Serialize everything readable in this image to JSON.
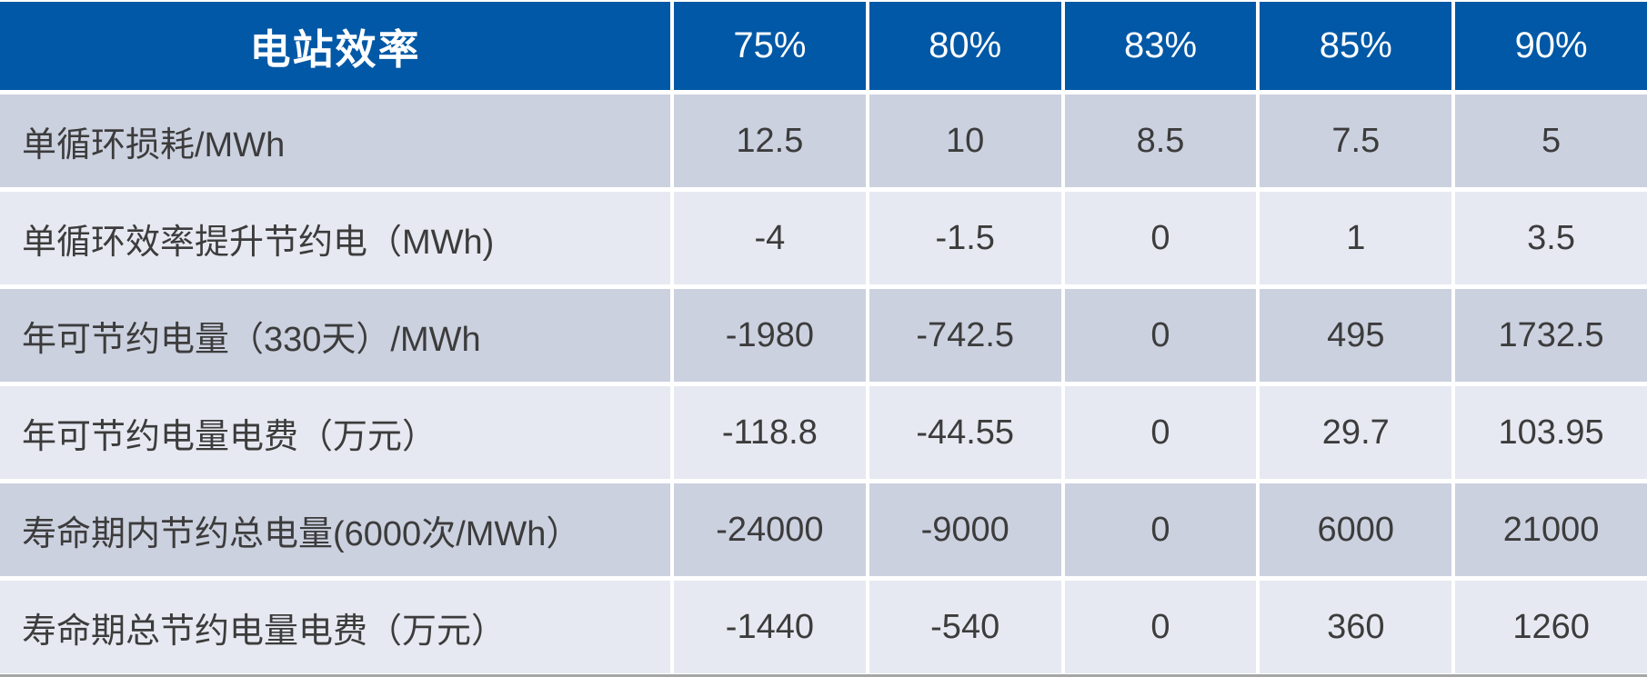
{
  "chart_data": {
    "type": "table",
    "title": "电站效率",
    "columns": [
      "电站效率",
      "75%",
      "80%",
      "83%",
      "85%",
      "90%"
    ],
    "rows": [
      {
        "label": "单循环损耗/MWh",
        "values": [
          12.5,
          10,
          8.5,
          7.5,
          5
        ]
      },
      {
        "label": "单循环效率提升节约电（MWh)",
        "values": [
          -4,
          -1.5,
          0,
          1,
          3.5
        ]
      },
      {
        "label": "年可节约电量（330天）/MWh",
        "values": [
          -1980,
          -742.5,
          0,
          495,
          1732.5
        ]
      },
      {
        "label": "年可节约电量电费（万元）",
        "values": [
          -118.8,
          -44.55,
          0,
          29.7,
          103.95
        ]
      },
      {
        "label": "寿命期内节约总电量(6000次/MWh）",
        "values": [
          -24000,
          -9000,
          0,
          6000,
          21000
        ]
      },
      {
        "label": "寿命期总节约电量电费（万元）",
        "values": [
          -1440,
          -540,
          0,
          360,
          1260
        ]
      }
    ]
  },
  "table": {
    "header": {
      "label": "电站效率",
      "columns": [
        "75%",
        "80%",
        "83%",
        "85%",
        "90%"
      ]
    },
    "rows": [
      {
        "label": "单循环损耗/MWh",
        "values": [
          "12.5",
          "10",
          "8.5",
          "7.5",
          "5"
        ]
      },
      {
        "label": "单循环效率提升节约电（MWh)",
        "values": [
          "-4",
          "-1.5",
          "0",
          "1",
          "3.5"
        ]
      },
      {
        "label": "年可节约电量（330天）/MWh",
        "values": [
          "-1980",
          "-742.5",
          "0",
          "495",
          "1732.5"
        ]
      },
      {
        "label": "年可节约电量电费（万元）",
        "values": [
          "-118.8",
          "-44.55",
          "0",
          "29.7",
          "103.95"
        ]
      },
      {
        "label": "寿命期内节约总电量(6000次/MWh）",
        "values": [
          "-24000",
          "-9000",
          "0",
          "6000",
          "21000"
        ]
      },
      {
        "label": "寿命期总节约电量电费（万元）",
        "values": [
          "-1440",
          "-540",
          "0",
          "360",
          "1260"
        ]
      }
    ]
  },
  "colors": {
    "header_bg": "#0058A6",
    "header_text": "#FFFFFF",
    "row_dark_bg": "#CCD1E0",
    "row_light_bg": "#E7E9F2",
    "cell_text": "#3C3C3C",
    "divider": "#FFFFFF",
    "bottom_border": "#A6A6A6"
  }
}
